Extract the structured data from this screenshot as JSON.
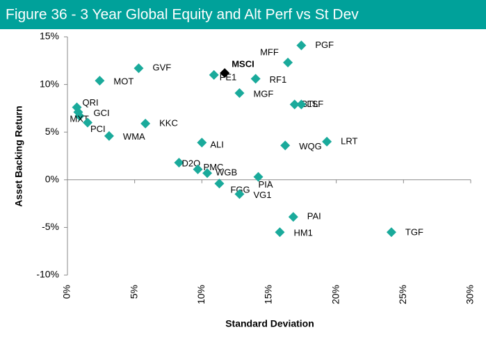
{
  "chart_data": {
    "type": "scatter",
    "title": "Figure 36 - 3 Year Global Equity and Alt Perf vs St Dev",
    "xlabel": "Standard Deviation",
    "ylabel": "Asset Backing Return",
    "labels": [
      "PGF",
      "MFF",
      "MSCI",
      "PE1",
      "GVF",
      "MOT",
      "RF1",
      "MGF",
      "BTL",
      "LSF",
      "QRI",
      "GCI",
      "MXT",
      "PCI",
      "KKC",
      "WMA",
      "ALI",
      "WQG",
      "LRT",
      "D2O",
      "PMC",
      "WGB",
      "PIA",
      "FGG",
      "VG1",
      "PAI",
      "HM1",
      "TGF"
    ],
    "x": [
      17.4,
      16.4,
      11.7,
      10.9,
      5.3,
      2.4,
      14.0,
      12.8,
      16.9,
      17.4,
      0.7,
      0.8,
      0.9,
      1.5,
      5.8,
      3.1,
      10.0,
      16.2,
      19.3,
      8.3,
      9.7,
      10.4,
      14.2,
      11.3,
      12.8,
      16.8,
      15.8,
      24.1
    ],
    "y": [
      14.1,
      12.3,
      11.2,
      11.0,
      11.7,
      10.4,
      10.6,
      9.1,
      7.9,
      7.9,
      7.6,
      7.1,
      6.7,
      6.0,
      5.9,
      4.6,
      3.9,
      3.6,
      4.0,
      1.8,
      1.1,
      0.7,
      0.3,
      -0.4,
      -1.5,
      -3.9,
      -5.5,
      -5.5
    ],
    "colors": [
      "#1aaa9b",
      "#1aaa9b",
      "#000000",
      "#1aaa9b",
      "#1aaa9b",
      "#1aaa9b",
      "#1aaa9b",
      "#1aaa9b",
      "#1aaa9b",
      "#1aaa9b",
      "#1aaa9b",
      "#1aaa9b",
      "#1aaa9b",
      "#1aaa9b",
      "#1aaa9b",
      "#1aaa9b",
      "#1aaa9b",
      "#1aaa9b",
      "#1aaa9b",
      "#1aaa9b",
      "#1aaa9b",
      "#1aaa9b",
      "#1aaa9b",
      "#1aaa9b",
      "#1aaa9b",
      "#1aaa9b",
      "#1aaa9b",
      "#1aaa9b"
    ],
    "xlim": [
      0,
      30
    ],
    "ylim": [
      -10,
      15
    ],
    "xticks": [
      {
        "value": 0,
        "label": "0%"
      },
      {
        "value": 5,
        "label": "5%"
      },
      {
        "value": 10,
        "label": "10%"
      },
      {
        "value": 15,
        "label": "15%"
      },
      {
        "value": 20,
        "label": "20%"
      },
      {
        "value": 25,
        "label": "25%"
      },
      {
        "value": 30,
        "label": "30%"
      }
    ],
    "yticks": [
      {
        "value": -10,
        "label": "-10%"
      },
      {
        "value": -5,
        "label": "-5%"
      },
      {
        "value": 0,
        "label": "0%"
      },
      {
        "value": 5,
        "label": "5%"
      },
      {
        "value": 10,
        "label": "10%"
      },
      {
        "value": 15,
        "label": "15%"
      }
    ],
    "grid": false
  }
}
